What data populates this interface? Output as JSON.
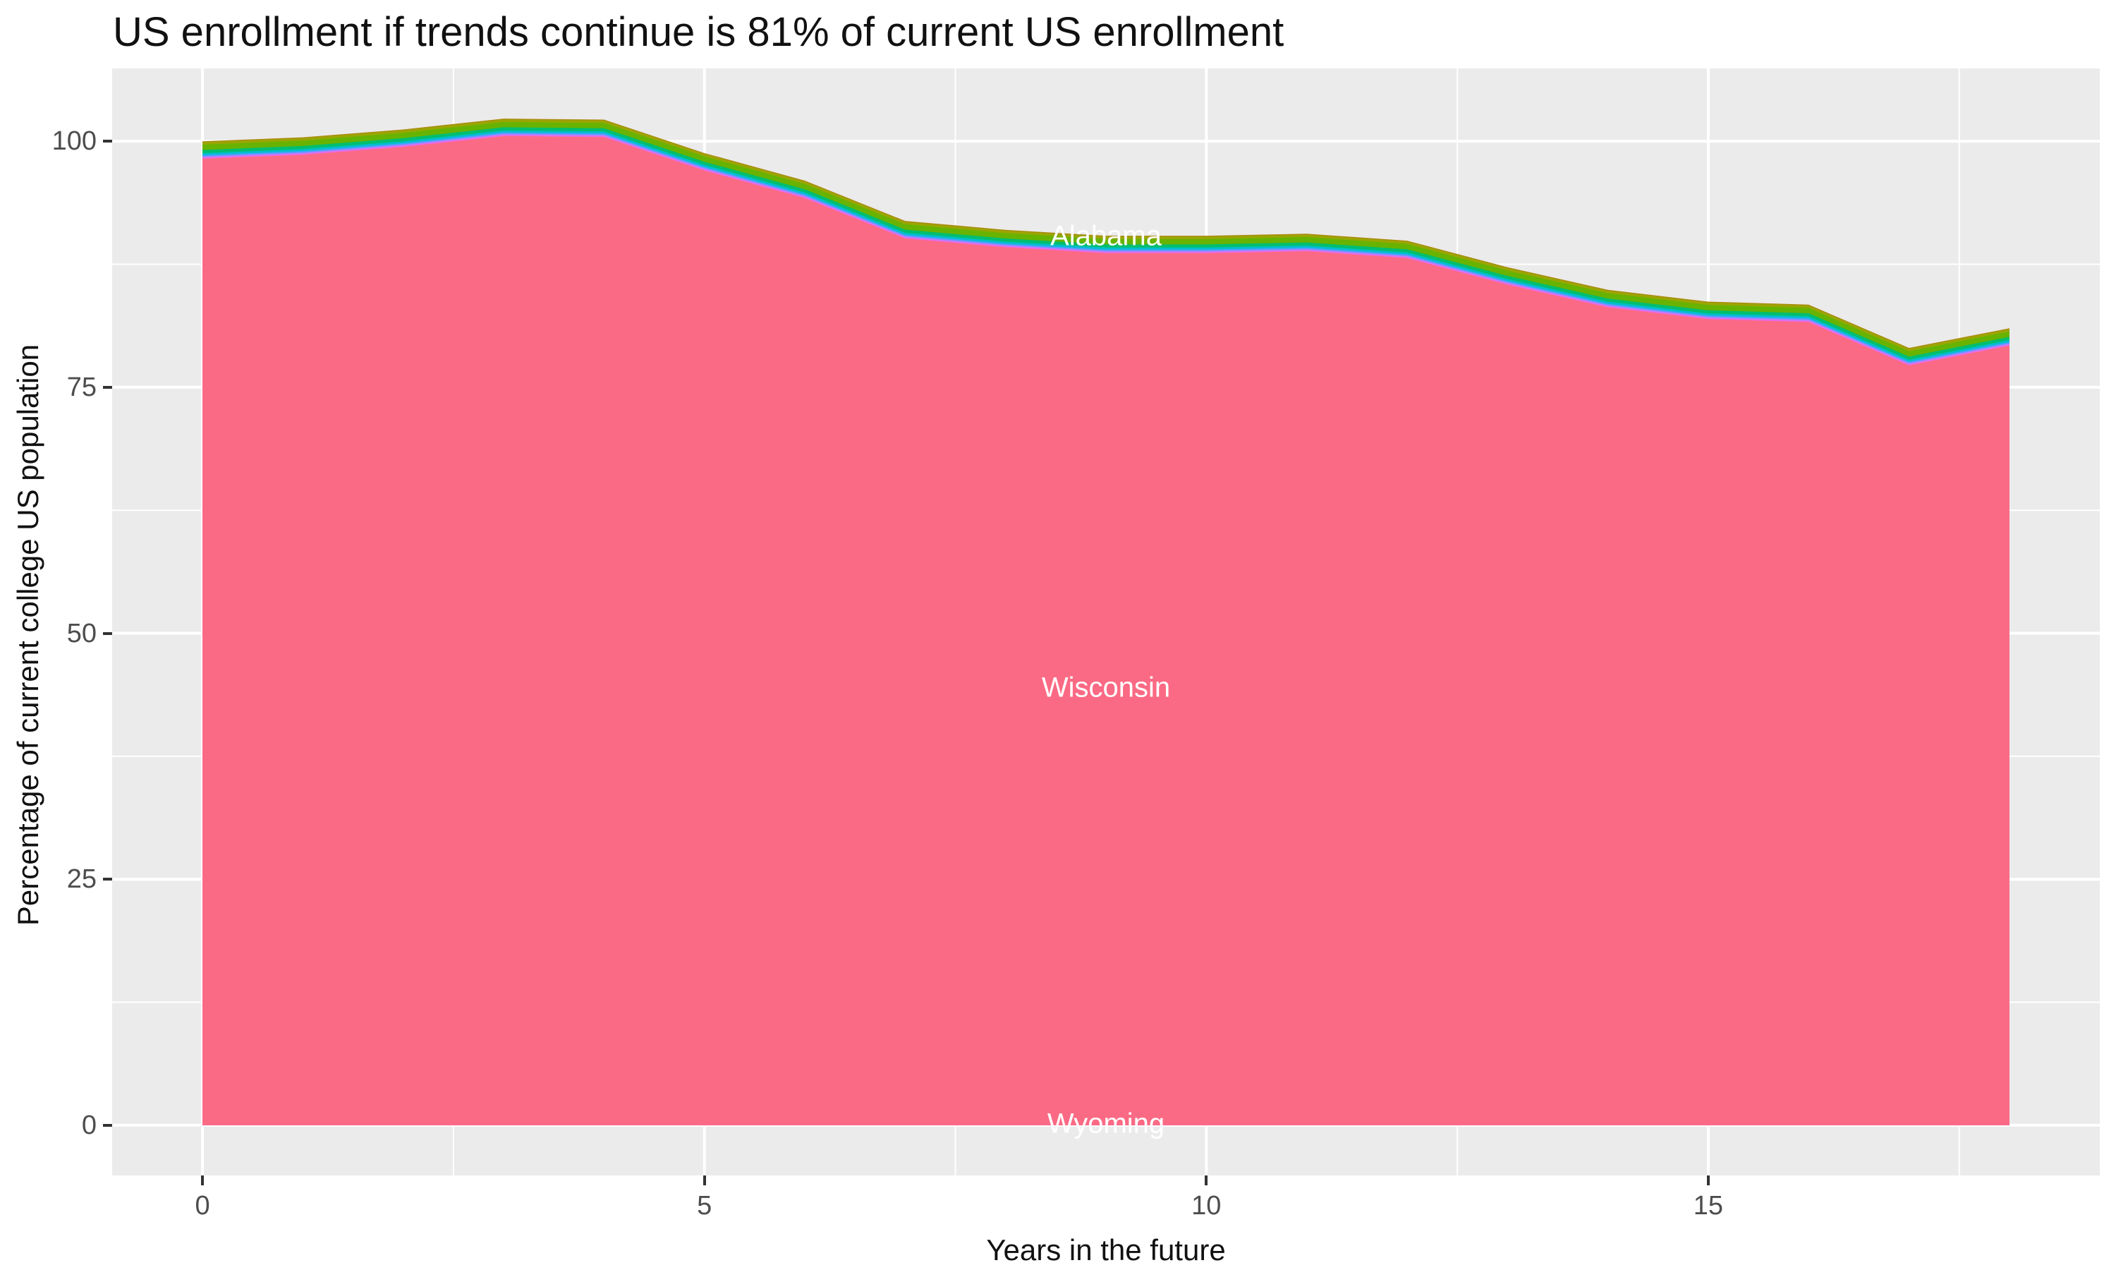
{
  "title": "US enrollment if trends continue is 81% of current US enrollment",
  "axes": {
    "x": {
      "title": "Years in the future",
      "tick_labels": [
        "0",
        "5",
        "10",
        "15"
      ],
      "tick_values": [
        0,
        5,
        10,
        15
      ],
      "minor_values": [
        2.5,
        7.5,
        12.5,
        17.5
      ]
    },
    "y": {
      "title": "Percentage of current college US population",
      "tick_labels": [
        "0",
        "25",
        "50",
        "75",
        "100"
      ],
      "tick_values": [
        0,
        25,
        50,
        75,
        100
      ],
      "minor_values": [
        12.5,
        37.5,
        62.5,
        87.5
      ]
    }
  },
  "colors": {
    "panel_background": "#EBEBEB",
    "grid_major": "#FFFFFF",
    "grid_minor": "#FFFFFF",
    "tick_text": "#4D4D4D",
    "tick_mark": "#333333",
    "title_text": "#111111",
    "state_label_text": "#FFFFFF",
    "wisconsin_pink": "#FB6A84"
  },
  "chart_data": {
    "type": "area",
    "stacked": true,
    "title": "US enrollment if trends continue is 81% of current US enrollment",
    "xlabel": "Years in the future",
    "ylabel": "Percentage of current college US population",
    "x": [
      0,
      1,
      2,
      3,
      4,
      5,
      6,
      7,
      8,
      9,
      10,
      11,
      12,
      13,
      14,
      15,
      16,
      17,
      18
    ],
    "x_expanded_range": [
      -0.9,
      18.9
    ],
    "y_expanded_range": [
      -5.1,
      107.4
    ],
    "total": [
      100.0,
      100.4,
      101.2,
      102.3,
      102.2,
      98.8,
      96.0,
      91.9,
      91.0,
      90.4,
      90.4,
      90.6,
      89.9,
      87.2,
      84.9,
      83.7,
      83.4,
      79.0,
      81.0
    ],
    "grid": true,
    "legend": "none",
    "note": "Stacked area of all US states (alphabetical, Alabama at top through Wyoming at bottom); Wisconsin layer dominates; other states compressed into thin hue bands under the top edge",
    "bands": [
      {
        "name": "top-edge-states",
        "color": "#AB8A0E",
        "offset_from_total": 0.0
      },
      {
        "name": "olive-states",
        "color": "#9AA600",
        "offset_from_total": 0.1
      },
      {
        "name": "green-states",
        "color": "#68B300",
        "offset_from_total": 0.34
      },
      {
        "name": "teal-states",
        "color": "#00BE70",
        "offset_from_total": 0.88
      },
      {
        "name": "cyan-states",
        "color": "#00BECC",
        "offset_from_total": 1.2
      },
      {
        "name": "azure-states",
        "color": "#44A4FF",
        "offset_from_total": 1.4
      },
      {
        "name": "blue-violet-states",
        "color": "#9189FF",
        "offset_from_total": 1.52
      },
      {
        "name": "violet-states",
        "color": "#C77CFF",
        "offset_from_total": 1.6
      },
      {
        "name": "magenta-states",
        "color": "#EF67DF",
        "offset_from_total": 1.68
      },
      {
        "name": "Wisconsin",
        "color": "#FB6A84",
        "offset_from_total": 1.78
      }
    ],
    "annotations": [
      {
        "text": "Alabama",
        "year": 9.0,
        "pct": 90.2
      },
      {
        "text": "Wisconsin",
        "year": 9.0,
        "pct": 44.3
      },
      {
        "text": "Wyoming",
        "year": 9.0,
        "pct": 0.0
      }
    ]
  }
}
